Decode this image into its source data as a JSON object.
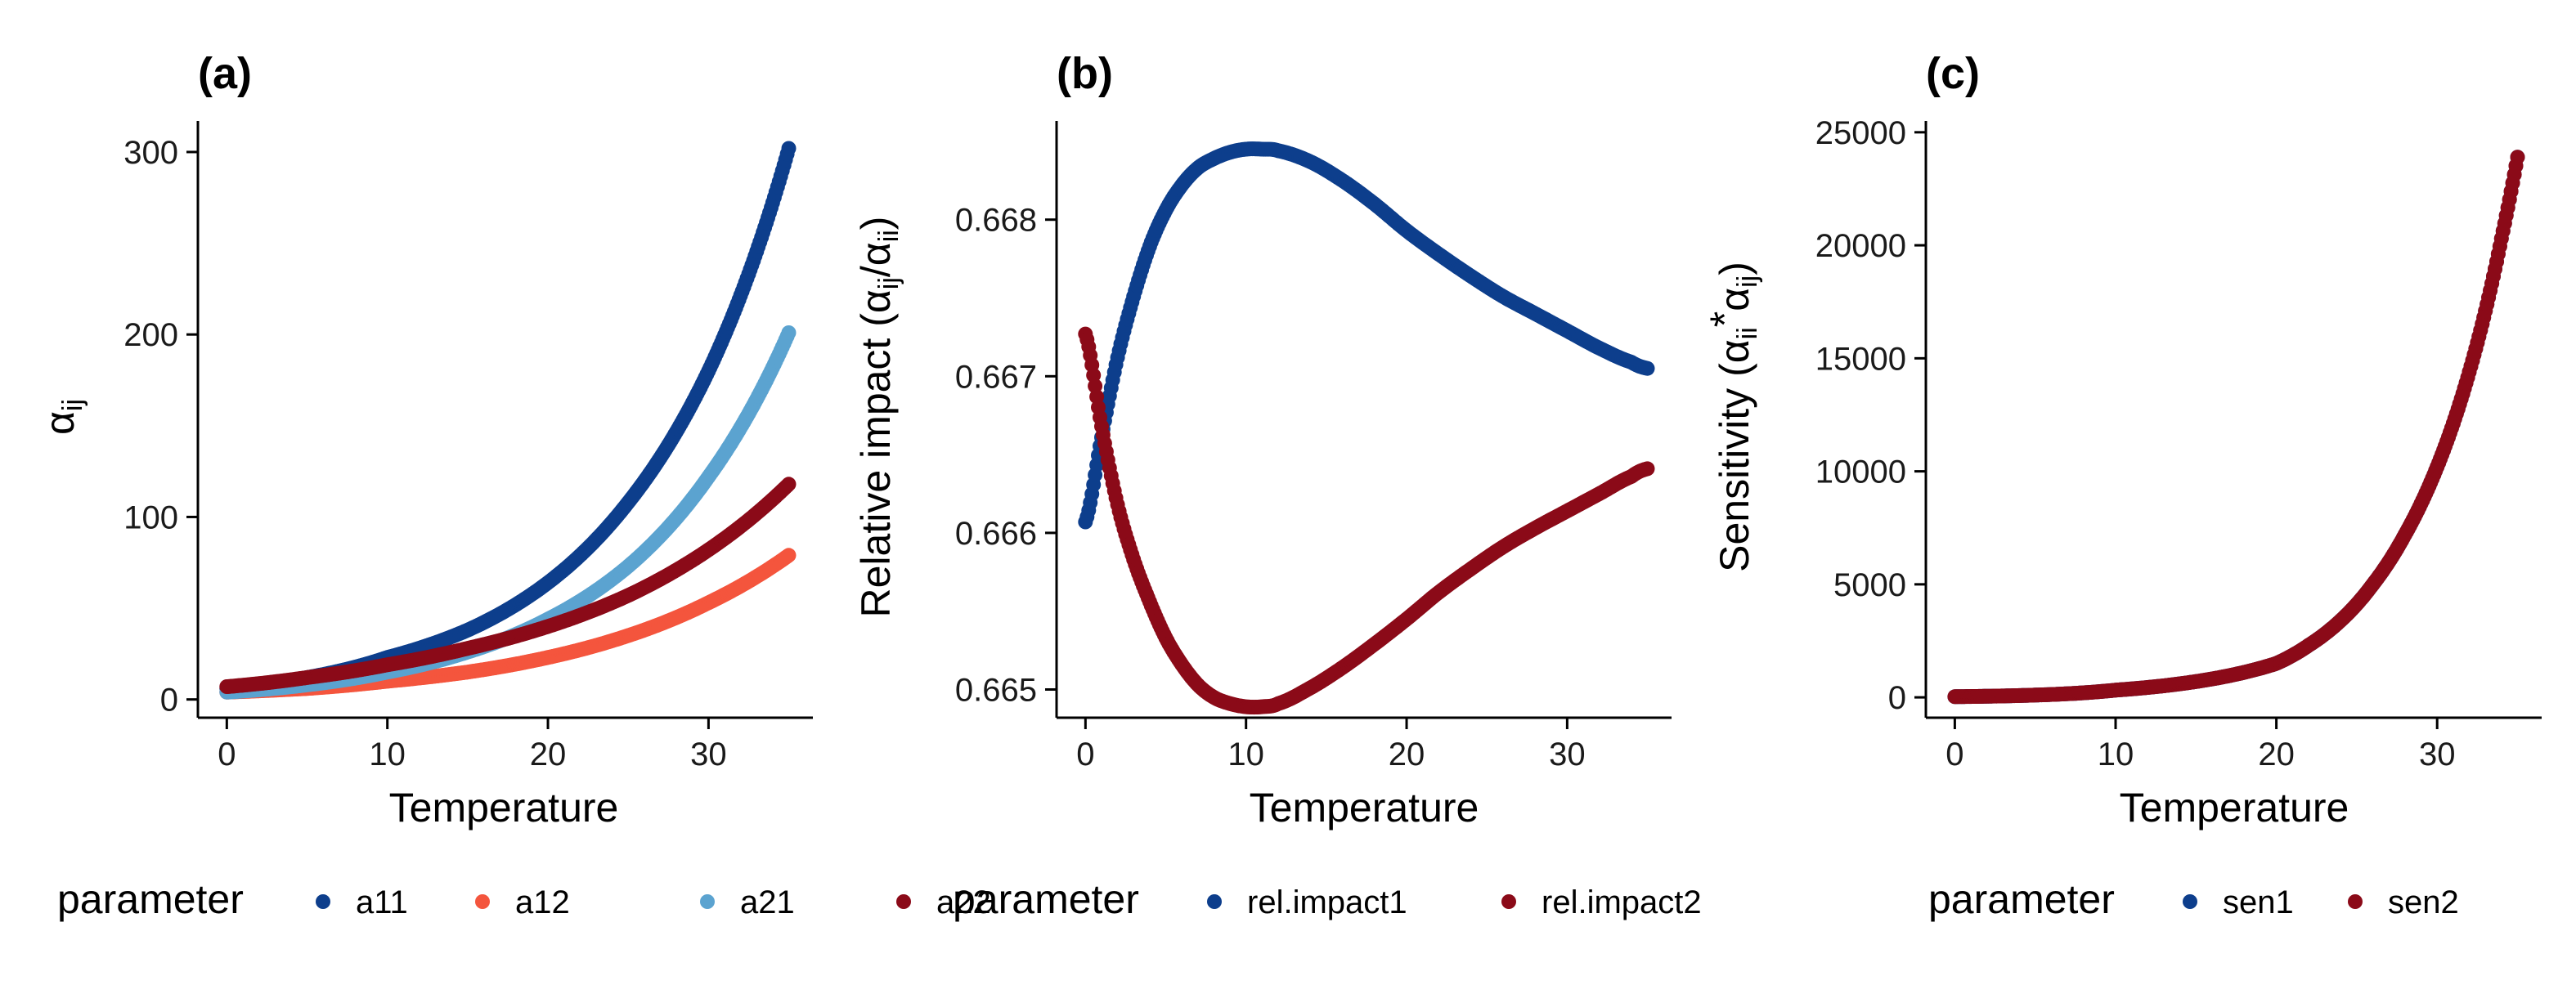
{
  "colors": {
    "a11": "#0D3E8C",
    "a12": "#F4553D",
    "a21": "#5BA3D0",
    "a22": "#8B0A18",
    "rel.impact1": "#0D3E8C",
    "rel.impact2": "#8B0A18",
    "sen1": "#0D3E8C",
    "sen2": "#8B0A18"
  },
  "chart_data": [
    {
      "panel": "(a)",
      "type": "scatter",
      "xlabel": "Temperature",
      "ylabel": {
        "base": "α",
        "sub": "ij"
      },
      "xlim": [
        -1.8,
        36.5
      ],
      "ylim": [
        -10,
        317
      ],
      "xticks": [
        0,
        10,
        20,
        30
      ],
      "yticks": [
        0,
        100,
        200,
        300
      ],
      "legend": {
        "title": "parameter",
        "entries": [
          "a11",
          "a12",
          "a21",
          "a22"
        ],
        "position": "bottom"
      },
      "series": [
        {
          "name": "a11",
          "x": [
            0,
            5,
            10,
            15,
            20,
            25,
            30,
            35
          ],
          "y": [
            6,
            12,
            23,
            38,
            64,
            108,
            180,
            302
          ]
        },
        {
          "name": "a12",
          "x": [
            0,
            5,
            10,
            15,
            20,
            25,
            30,
            35
          ],
          "y": [
            4,
            6,
            10,
            15,
            23,
            35,
            53,
            79
          ]
        },
        {
          "name": "a21",
          "x": [
            0,
            5,
            10,
            15,
            20,
            25,
            30,
            35
          ],
          "y": [
            4,
            8,
            15,
            26,
            44,
            73,
            122,
            201
          ]
        },
        {
          "name": "a22",
          "x": [
            0,
            5,
            10,
            15,
            20,
            25,
            30,
            35
          ],
          "y": [
            7,
            12,
            19,
            28,
            40,
            57,
            82,
            118
          ]
        }
      ]
    },
    {
      "panel": "(b)",
      "type": "scatter",
      "xlabel": "Temperature",
      "ylabel": {
        "prefix": "Relative impact (",
        "a1": "α",
        "s1": "ij",
        "mid": "/",
        "a2": "α",
        "s2": "ii",
        "suffix": ")"
      },
      "xlim": [
        -1.8,
        36.5
      ],
      "ylim": [
        0.66482,
        0.66863
      ],
      "xticks": [
        0,
        10,
        20,
        30
      ],
      "yticks": [
        0.665,
        0.666,
        0.667,
        0.668
      ],
      "ytick_labels": [
        "0.665",
        "0.666",
        "0.667",
        "0.668"
      ],
      "legend": {
        "title": "parameter",
        "entries": [
          "rel.impact1",
          "rel.impact2"
        ],
        "position": "bottom"
      },
      "series": [
        {
          "name": "rel.impact1",
          "x": [
            0,
            1,
            2,
            3,
            4,
            5,
            6,
            7,
            8,
            9,
            10,
            11,
            12,
            14,
            16,
            18,
            20,
            22,
            24,
            26,
            28,
            30,
            32,
            34,
            35
          ],
          "y": [
            0.66607,
            0.66661,
            0.66712,
            0.66751,
            0.66783,
            0.66806,
            0.66822,
            0.66833,
            0.66839,
            0.66843,
            0.66845,
            0.66845,
            0.66844,
            0.66837,
            0.66825,
            0.6681,
            0.66793,
            0.66778,
            0.66764,
            0.66751,
            0.6674,
            0.66729,
            0.66718,
            0.66709,
            0.66705
          ]
        },
        {
          "name": "rel.impact2",
          "x": [
            0,
            1,
            2,
            3,
            4,
            5,
            6,
            7,
            8,
            9,
            10,
            11,
            12,
            14,
            16,
            18,
            20,
            22,
            24,
            26,
            28,
            30,
            32,
            34,
            35
          ],
          "y": [
            0.66727,
            0.66668,
            0.66618,
            0.66583,
            0.66556,
            0.66533,
            0.66516,
            0.66503,
            0.66495,
            0.66491,
            0.66489,
            0.66489,
            0.66491,
            0.66501,
            0.66514,
            0.66529,
            0.66545,
            0.66562,
            0.66577,
            0.66591,
            0.66603,
            0.66614,
            0.66625,
            0.66636,
            0.66641
          ]
        }
      ]
    },
    {
      "panel": "(c)",
      "type": "scatter",
      "xlabel": "Temperature",
      "ylabel": {
        "prefix": "Sensitivity (",
        "a1": "α",
        "s1": "ii",
        "mid": "*",
        "a2": "α",
        "s2": "ij",
        "suffix": ")"
      },
      "xlim": [
        -1.8,
        36.5
      ],
      "ylim": [
        -900,
        25500
      ],
      "xticks": [
        0,
        10,
        20,
        30
      ],
      "yticks": [
        0,
        5000,
        10000,
        15000,
        20000,
        25000
      ],
      "legend": {
        "title": "parameter",
        "entries": [
          "sen1",
          "sen2"
        ],
        "position": "bottom"
      },
      "series": [
        {
          "name": "sen1",
          "x": [
            0,
            5,
            10,
            15,
            20,
            22,
            24,
            26,
            28,
            30,
            32,
            34,
            35
          ],
          "y": [
            30,
            100,
            320,
            700,
            1500,
            2300,
            3400,
            5000,
            7200,
            10200,
            14400,
            20300,
            23900
          ]
        },
        {
          "name": "sen2",
          "x": [
            0,
            5,
            10,
            15,
            20,
            22,
            24,
            26,
            28,
            30,
            32,
            34,
            35
          ],
          "y": [
            30,
            100,
            320,
            700,
            1500,
            2300,
            3400,
            5000,
            7200,
            10200,
            14400,
            20300,
            23900
          ]
        }
      ]
    }
  ]
}
